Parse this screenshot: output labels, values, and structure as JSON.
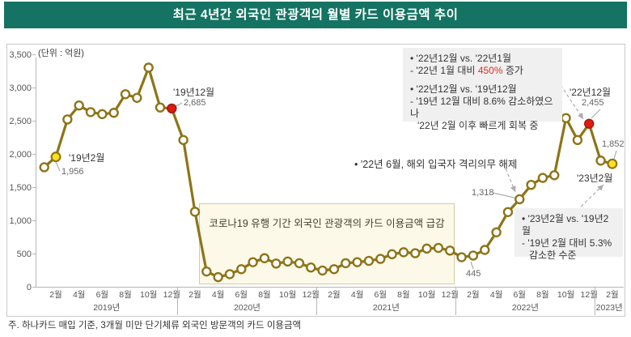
{
  "title": "최근 4년간 외국인 관광객의 월별 카드 이용금액 추이",
  "unit_label": "(단위 : 억원)",
  "footnote": "주. 하나카드 매입 기준, 3개월 미만 단기체류 외국인 방문객의 카드 이용금액",
  "colors": {
    "banner_bg": "#147362",
    "line": "#8e7418",
    "marker_fill": "#ffffff",
    "yellow_marker": "#ffe01a",
    "red_marker": "#dd1d12",
    "red_marker_stroke": "#a51810",
    "axis": "#b5b5b5",
    "arrow": "#adadad",
    "annotation_bg": "#f0f0f0",
    "covid_box_bg": "#fcf9e8",
    "highlight_red_text": "#d93025"
  },
  "chart_data": {
    "type": "line",
    "title": "최근 4년간 외국인 관광객의 월별 카드 이용금액 추이",
    "unit": "억원",
    "ylim": [
      0,
      3500
    ],
    "grid": false,
    "y_ticks": [
      {
        "v": 0,
        "label": "0"
      },
      {
        "v": 500,
        "label": "500"
      },
      {
        "v": 1000,
        "label": "1,000"
      },
      {
        "v": 1500,
        "label": "1,500"
      },
      {
        "v": 2000,
        "label": "2,000"
      },
      {
        "v": 2500,
        "label": "2,500"
      },
      {
        "v": 3000,
        "label": "3,000"
      },
      {
        "v": 3500,
        "label": "3,500"
      }
    ],
    "x_start": "2019-01",
    "x_end": "2023-02",
    "month_tick_labels": [
      "2월",
      "4월",
      "6월",
      "8월",
      "10월",
      "12월"
    ],
    "last_month_tick_label": "2월",
    "year_labels": [
      "2019년",
      "2020년",
      "2021년",
      "2022년",
      "2023년"
    ],
    "values": [
      1800,
      1956,
      2520,
      2730,
      2630,
      2600,
      2620,
      2900,
      2845,
      3300,
      2700,
      2685,
      2210,
      1130,
      230,
      145,
      190,
      265,
      370,
      430,
      350,
      380,
      355,
      290,
      245,
      265,
      355,
      370,
      390,
      420,
      490,
      520,
      505,
      575,
      585,
      545,
      445,
      470,
      555,
      820,
      1125,
      1318,
      1535,
      1640,
      1680,
      2540,
      2210,
      2455,
      1900,
      1852
    ],
    "special_points": [
      {
        "index": 1,
        "color": "yellow",
        "label": "'19년2월",
        "value_label": "1,956"
      },
      {
        "index": 11,
        "color": "red",
        "label": "'19년12월",
        "value_label": "2,685"
      },
      {
        "index": 41,
        "color": "none",
        "label": "",
        "value_label": "1,318"
      },
      {
        "index": 36,
        "color": "none",
        "label": "",
        "value_label": "445"
      },
      {
        "index": 47,
        "color": "red",
        "label": "'22년12월",
        "value_label": "2,455"
      },
      {
        "index": 49,
        "color": "yellow",
        "label": "'23년2월",
        "value_label": "1,852"
      }
    ]
  },
  "annotations": {
    "covid_box": "코로나19 유행 기간 외국인 관광객의 카드 이용금액 급감",
    "release_note": "• '22년 6월, 해외 입국자 격리의무 해제",
    "box1": {
      "l1": "• '22년12월 vs. '22년1월",
      "l2_pre": "- '22년 1월 대비 ",
      "l2_red": "450%",
      "l2_post": " 증가",
      "l3": "• '22년12월 vs. '19년12월",
      "l4": "- '19년 12월 대비 8.6% 감소하였으나",
      "l5": "'22년 2월 이후 빠르게 회복 중"
    },
    "box2": {
      "l1": "• '23년2월 vs. '19년2월",
      "l2": "- '19년 2월 대비 5.3%",
      "l3": "감소한 수준"
    },
    "point_labels": {
      "feb19": "'19년2월",
      "feb19_value": "1,956",
      "dec19": "'19년12월",
      "dec19_value": "2,685",
      "dec22": "'22년12월",
      "dec22_value": "2,455",
      "feb23": "'23년2월",
      "feb23_value": "1,852",
      "jun22_value": "1,318",
      "jan22_value": "445"
    }
  }
}
